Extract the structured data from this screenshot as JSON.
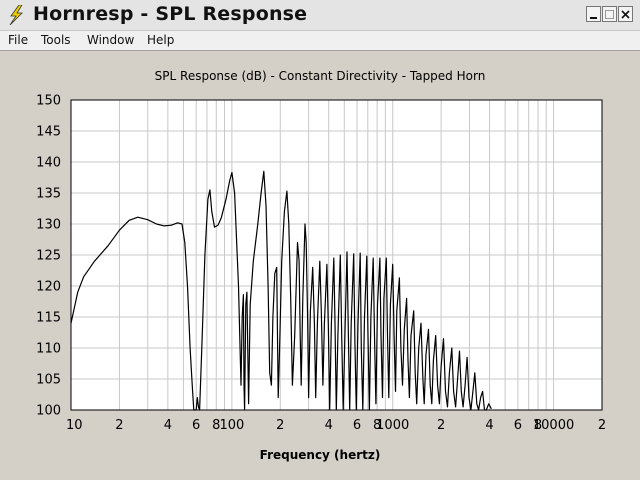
{
  "window": {
    "title": "Hornresp - SPL Response"
  },
  "menu": [
    "File",
    "Tools",
    "Window",
    "Help"
  ],
  "colors": {
    "plot_bg": "#ffffff",
    "window_bg": "#d4d0c8",
    "grid": "#c8c8c8",
    "curve": "#000000"
  },
  "icons": {
    "app": "lightning-icon",
    "minimize": "minimize-icon",
    "maximize": "maximize-icon",
    "close": "close-icon"
  },
  "chart_data": {
    "type": "line",
    "title": "SPL Response (dB) - Constant Directivity - Tapped Horn",
    "xlabel": "Frequency (hertz)",
    "ylabel": "",
    "x_scale": "log",
    "xlim": [
      10,
      20000
    ],
    "ylim": [
      100,
      150
    ],
    "grid": true,
    "y_ticks": [
      "150",
      "145",
      "140",
      "135",
      "130",
      "125",
      "120",
      "115",
      "110",
      "105",
      "100"
    ],
    "x_ticks": [
      {
        "value": 10,
        "label": "10"
      },
      {
        "value": 20,
        "label": "2"
      },
      {
        "value": 40,
        "label": "4"
      },
      {
        "value": 60,
        "label": "6"
      },
      {
        "value": 80,
        "label": "8"
      },
      {
        "value": 100,
        "label": "100"
      },
      {
        "value": 200,
        "label": "2"
      },
      {
        "value": 400,
        "label": "4"
      },
      {
        "value": 600,
        "label": "6"
      },
      {
        "value": 800,
        "label": "8"
      },
      {
        "value": 1000,
        "label": "1000"
      },
      {
        "value": 2000,
        "label": "2"
      },
      {
        "value": 4000,
        "label": "4"
      },
      {
        "value": 6000,
        "label": "6"
      },
      {
        "value": 8000,
        "label": "8"
      },
      {
        "value": 10000,
        "label": "10000"
      },
      {
        "value": 20000,
        "label": "2"
      }
    ],
    "series": [
      {
        "points": [
          [
            10,
            114
          ],
          [
            11,
            119
          ],
          [
            12,
            121.5
          ],
          [
            14,
            124
          ],
          [
            17,
            126.5
          ],
          [
            20,
            129
          ],
          [
            23,
            130.6
          ],
          [
            26,
            131.1
          ],
          [
            30,
            130.7
          ],
          [
            34,
            130
          ],
          [
            38,
            129.7
          ],
          [
            42,
            129.8
          ],
          [
            46,
            130.2
          ],
          [
            49,
            130
          ],
          [
            51,
            127
          ],
          [
            53,
            120
          ],
          [
            55,
            110
          ],
          [
            57,
            103
          ],
          [
            58,
            100
          ],
          [
            60,
            100
          ],
          [
            61,
            102
          ],
          [
            62,
            100.5
          ],
          [
            63,
            100
          ],
          [
            65,
            110
          ],
          [
            68,
            125
          ],
          [
            71,
            134
          ],
          [
            73,
            135.5
          ],
          [
            75,
            132
          ],
          [
            78,
            129.5
          ],
          [
            82,
            129.8
          ],
          [
            86,
            131
          ],
          [
            92,
            134
          ],
          [
            97,
            137
          ],
          [
            100,
            138.3
          ],
          [
            104,
            135
          ],
          [
            110,
            120
          ],
          [
            114,
            104
          ],
          [
            116,
            115
          ],
          [
            118,
            118.6
          ],
          [
            119,
            104
          ],
          [
            120,
            100
          ],
          [
            122,
            117
          ],
          [
            124,
            119
          ],
          [
            127,
            101
          ],
          [
            130,
            117
          ],
          [
            136,
            124
          ],
          [
            145,
            130
          ],
          [
            152,
            135
          ],
          [
            158,
            138.5
          ],
          [
            163,
            133
          ],
          [
            168,
            120
          ],
          [
            172,
            106
          ],
          [
            176,
            104
          ],
          [
            180,
            115
          ],
          [
            185,
            122
          ],
          [
            190,
            123
          ],
          [
            194,
            102
          ],
          [
            198,
            110
          ],
          [
            204,
            124
          ],
          [
            212,
            132
          ],
          [
            220,
            135.3
          ],
          [
            226,
            130
          ],
          [
            232,
            118
          ],
          [
            238,
            104
          ],
          [
            246,
            112
          ],
          [
            256,
            127
          ],
          [
            262,
            124
          ],
          [
            266,
            112
          ],
          [
            270,
            104
          ],
          [
            276,
            118
          ],
          [
            285,
            130
          ],
          [
            290,
            127
          ],
          [
            296,
            114
          ],
          [
            300,
            102
          ],
          [
            308,
            116
          ],
          [
            318,
            123
          ],
          [
            326,
            114
          ],
          [
            332,
            102
          ],
          [
            340,
            114
          ],
          [
            352,
            124
          ],
          [
            360,
            116
          ],
          [
            368,
            104
          ],
          [
            376,
            114
          ],
          [
            390,
            123.5
          ],
          [
            398,
            113
          ],
          [
            406,
            100
          ],
          [
            416,
            114
          ],
          [
            430,
            124.5
          ],
          [
            438,
            114
          ],
          [
            446,
            100
          ],
          [
            456,
            112
          ],
          [
            472,
            125
          ],
          [
            482,
            112
          ],
          [
            492,
            100
          ],
          [
            504,
            112
          ],
          [
            520,
            125.5
          ],
          [
            530,
            112
          ],
          [
            540,
            100
          ],
          [
            552,
            114
          ],
          [
            572,
            125.2
          ],
          [
            582,
            111
          ],
          [
            594,
            100
          ],
          [
            608,
            114
          ],
          [
            628,
            125.3
          ],
          [
            638,
            110
          ],
          [
            652,
            100
          ],
          [
            668,
            115
          ],
          [
            690,
            124.8
          ],
          [
            702,
            112
          ],
          [
            716,
            100
          ],
          [
            732,
            115
          ],
          [
            756,
            124.5
          ],
          [
            770,
            112
          ],
          [
            786,
            101
          ],
          [
            804,
            117
          ],
          [
            832,
            124.5
          ],
          [
            846,
            112
          ],
          [
            864,
            102
          ],
          [
            882,
            118
          ],
          [
            912,
            124.5
          ],
          [
            928,
            112
          ],
          [
            946,
            102
          ],
          [
            968,
            117
          ],
          [
            1000,
            123.5
          ],
          [
            1020,
            112
          ],
          [
            1040,
            103
          ],
          [
            1060,
            116
          ],
          [
            1100,
            121.3
          ],
          [
            1125,
            110
          ],
          [
            1150,
            104
          ],
          [
            1180,
            113
          ],
          [
            1220,
            118
          ],
          [
            1245,
            108
          ],
          [
            1270,
            102
          ],
          [
            1300,
            112
          ],
          [
            1350,
            116
          ],
          [
            1380,
            106
          ],
          [
            1410,
            101
          ],
          [
            1450,
            110
          ],
          [
            1500,
            114
          ],
          [
            1540,
            105
          ],
          [
            1570,
            101
          ],
          [
            1610,
            109
          ],
          [
            1670,
            113
          ],
          [
            1710,
            104
          ],
          [
            1750,
            101
          ],
          [
            1790,
            108
          ],
          [
            1850,
            112
          ],
          [
            1900,
            104
          ],
          [
            1950,
            101
          ],
          [
            2000,
            107
          ],
          [
            2070,
            111.5
          ],
          [
            2130,
            103
          ],
          [
            2190,
            100.5
          ],
          [
            2250,
            106
          ],
          [
            2330,
            110
          ],
          [
            2390,
            103
          ],
          [
            2460,
            100.5
          ],
          [
            2530,
            105
          ],
          [
            2600,
            109.5
          ],
          [
            2670,
            103
          ],
          [
            2740,
            100.5
          ],
          [
            2820,
            104
          ],
          [
            2900,
            108.5
          ],
          [
            2980,
            102
          ],
          [
            3060,
            100
          ],
          [
            3150,
            103
          ],
          [
            3240,
            106
          ],
          [
            3330,
            101
          ],
          [
            3420,
            100
          ],
          [
            3520,
            102
          ],
          [
            3620,
            103
          ],
          [
            3720,
            100
          ],
          [
            3820,
            100
          ],
          [
            3950,
            101
          ],
          [
            4100,
            100.2
          ]
        ]
      }
    ]
  }
}
